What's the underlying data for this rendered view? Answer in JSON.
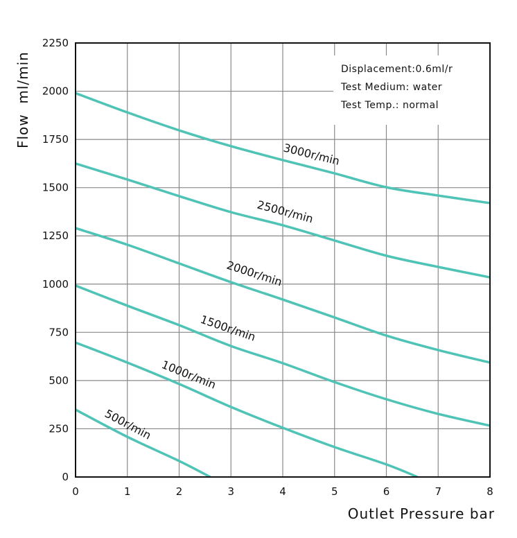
{
  "chart_data": {
    "type": "line",
    "title": "",
    "xlabel": "Outlet Pressure bar",
    "ylabel": "Flow  ml/min",
    "xlim": [
      0,
      8
    ],
    "ylim": [
      0,
      2250
    ],
    "xticks": [
      "0",
      "1",
      "2",
      "3",
      "4",
      "5",
      "6",
      "7",
      "8"
    ],
    "yticks": [
      "0",
      "250",
      "500",
      "750",
      "1000",
      "1250",
      "1500",
      "1750",
      "2000",
      "2250"
    ],
    "grid": true,
    "line_color": "#4fc3b5",
    "annotations": [
      "Displacement:0.6ml/r",
      "Test Medium: water",
      "Test Temp.: normal"
    ],
    "series": [
      {
        "name": "3000r/min",
        "x": [
          0,
          1,
          2,
          3,
          4,
          5,
          6,
          7,
          8
        ],
        "values": [
          1990,
          1890,
          1797,
          1715,
          1643,
          1574,
          1502,
          1459,
          1420
        ]
      },
      {
        "name": "2500r/min",
        "x": [
          0,
          1,
          2,
          3,
          4,
          5,
          6,
          7,
          8
        ],
        "values": [
          1625,
          1542,
          1456,
          1373,
          1305,
          1226,
          1147,
          1089,
          1035
        ]
      },
      {
        "name": "2000r/min",
        "x": [
          0,
          1,
          2,
          3,
          4,
          5,
          6,
          7,
          8
        ],
        "values": [
          1290,
          1204,
          1107,
          1010,
          920,
          827,
          733,
          658,
          593
        ]
      },
      {
        "name": "1500r/min",
        "x": [
          0,
          1,
          2,
          3,
          4,
          5,
          6,
          7,
          8
        ],
        "values": [
          992,
          888,
          787,
          679,
          590,
          492,
          403,
          327,
          266
        ]
      },
      {
        "name": "1000r/min",
        "x": [
          0,
          1,
          2,
          3,
          4,
          5,
          6,
          6.6
        ],
        "values": [
          697,
          593,
          482,
          363,
          255,
          155,
          65,
          0
        ]
      },
      {
        "name": "500r/min",
        "x": [
          0,
          1,
          2,
          2.6
        ],
        "values": [
          349,
          208,
          83,
          0
        ]
      }
    ]
  }
}
